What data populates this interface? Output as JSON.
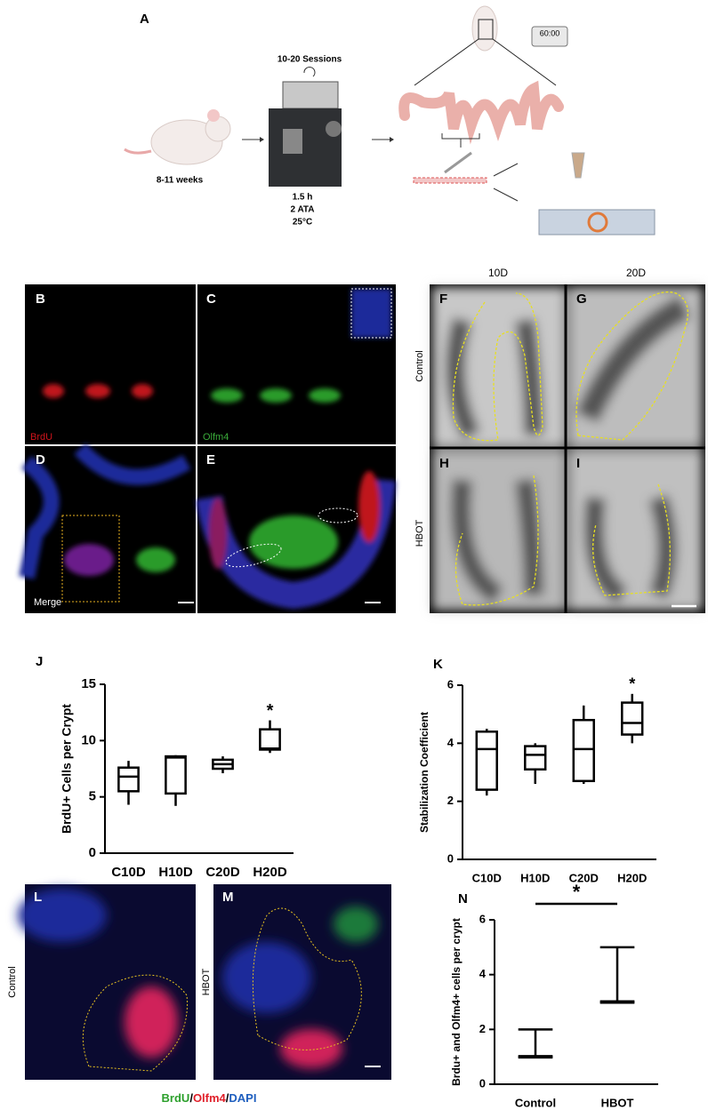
{
  "panel_a": {
    "label": "A",
    "sessions": "10-20 Sessions",
    "age": "8-11 weeks",
    "conditions": [
      "1.5 h",
      "2 ATA",
      "25°C"
    ],
    "timer": "60:00"
  },
  "microscopy": {
    "labels": [
      "B",
      "C",
      "D",
      "E"
    ],
    "stains": [
      "BrdU",
      "Olfm4",
      "Merge"
    ]
  },
  "histology": {
    "labels": [
      "F",
      "G",
      "H",
      "I"
    ],
    "columns": [
      "10D",
      "20D"
    ],
    "rows": [
      "Control",
      "HBOT"
    ]
  },
  "chart_data": [
    {
      "type": "box",
      "label": "J",
      "ylabel": "BrdU+ Cells per Crypt",
      "categories": [
        "C10D",
        "H10D",
        "C20D",
        "H20D"
      ],
      "boxes": [
        {
          "min": 4.3,
          "q1": 5.5,
          "median": 6.8,
          "q3": 7.6,
          "max": 8.2
        },
        {
          "min": 4.2,
          "q1": 5.3,
          "median": 8.5,
          "q3": 8.6,
          "max": 8.7
        },
        {
          "min": 7.1,
          "q1": 7.5,
          "median": 7.9,
          "q3": 8.3,
          "max": 8.6
        },
        {
          "min": 8.9,
          "q1": 9.2,
          "median": 9.3,
          "q3": 11.0,
          "max": 11.8
        }
      ],
      "ylim": [
        0,
        15
      ],
      "yticks": [
        0,
        5,
        10,
        15
      ],
      "annotation": "*",
      "whisker_caps": false
    },
    {
      "type": "box",
      "label": "K",
      "ylabel": "Stabilization Coefficient",
      "categories": [
        "C10D",
        "H10D",
        "C20D",
        "H20D"
      ],
      "boxes": [
        {
          "min": 2.2,
          "q1": 2.4,
          "median": 3.8,
          "q3": 4.4,
          "max": 4.5
        },
        {
          "min": 2.6,
          "q1": 3.1,
          "median": 3.6,
          "q3": 3.9,
          "max": 4.0
        },
        {
          "min": 2.6,
          "q1": 2.7,
          "median": 3.8,
          "q3": 4.8,
          "max": 5.3
        },
        {
          "min": 4.0,
          "q1": 4.3,
          "median": 4.7,
          "q3": 5.4,
          "max": 5.7
        }
      ],
      "ylim": [
        0,
        6
      ],
      "yticks": [
        0,
        2,
        4,
        6
      ],
      "annotation": "*",
      "whisker_caps": false
    },
    {
      "type": "box",
      "label": "N",
      "ylabel": "Brdu+ and Olfm4+ cells per crypt",
      "categories": [
        "Control",
        "HBOT"
      ],
      "boxes": [
        {
          "min": 1,
          "q1": 1,
          "median": 1,
          "q3": 1,
          "max": 2
        },
        {
          "min": 3,
          "q1": 3,
          "median": 3,
          "q3": 3,
          "max": 5
        }
      ],
      "ylim": [
        0,
        6
      ],
      "yticks": [
        0,
        2,
        4,
        6
      ],
      "annotation": "*",
      "whisker_caps": true,
      "significance_bar": true
    }
  ],
  "crypt_images": {
    "labels": [
      "L",
      "M"
    ],
    "rows": [
      "Control",
      "HBOT"
    ],
    "legend": [
      "BrdU",
      "Olfm4",
      "DAPI"
    ],
    "separator": "/"
  }
}
